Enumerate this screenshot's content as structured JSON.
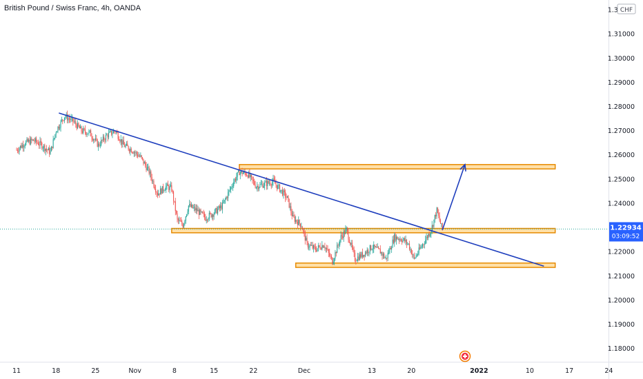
{
  "header": {
    "title": "British Pound / Swiss Franc, 4h, OANDA",
    "currency": "CHF"
  },
  "price_badge": {
    "price": "1.22934",
    "countdown": "03:09:52",
    "color": "#2962ff"
  },
  "colors": {
    "up": "#26a69a",
    "down": "#ef5350",
    "trendline": "#1e3ebd",
    "zone_fill": "#ffe0a8",
    "zone_border": "#e68a00"
  },
  "chart_data": {
    "type": "candlestick",
    "title": "British Pound / Swiss Franc, 4h, OANDA",
    "ylim": [
      1.1745,
      1.324
    ],
    "y_ticks": [
      "1.32000",
      "1.31000",
      "1.30000",
      "1.29000",
      "1.28000",
      "1.27000",
      "1.26000",
      "1.25000",
      "1.24000",
      "1.22000",
      "1.21000",
      "1.20000",
      "1.19000",
      "1.18000"
    ],
    "x_ticks": [
      {
        "label": "11",
        "day": 0
      },
      {
        "label": "18",
        "day": 7
      },
      {
        "label": "25",
        "day": 14
      },
      {
        "label": "Nov",
        "day": 21
      },
      {
        "label": "8",
        "day": 28
      },
      {
        "label": "15",
        "day": 35
      },
      {
        "label": "22",
        "day": 42
      },
      {
        "label": "Dec",
        "day": 51
      },
      {
        "label": "13",
        "day": 63
      },
      {
        "label": "20",
        "day": 70
      },
      {
        "label": "2022",
        "day": 82
      },
      {
        "label": "10",
        "day": 91
      },
      {
        "label": "17",
        "day": 98
      },
      {
        "label": "24",
        "day": 105
      }
    ],
    "last_price": 1.22934,
    "trendline": {
      "from": [
        7.5,
        1.2773
      ],
      "to": [
        93.5,
        1.214
      ]
    },
    "projection_arrow": {
      "from": [
        75.5,
        1.229
      ],
      "to": [
        79.5,
        1.256
      ]
    },
    "zones": [
      {
        "x": [
          39.5,
          95.5
        ],
        "y": [
          1.2542,
          1.256
        ]
      },
      {
        "x": [
          27.5,
          95.5
        ],
        "y": [
          1.2278,
          1.2296
        ]
      },
      {
        "x": [
          49.5,
          95.5
        ],
        "y": [
          1.2135,
          1.2153
        ]
      }
    ],
    "price_path": [
      [
        0,
        1.262
      ],
      [
        1.5,
        1.265
      ],
      [
        3,
        1.266
      ],
      [
        4.5,
        1.264
      ],
      [
        6,
        1.261
      ],
      [
        7,
        1.27
      ],
      [
        8.5,
        1.276
      ],
      [
        10,
        1.274
      ],
      [
        11.5,
        1.27
      ],
      [
        13,
        1.269
      ],
      [
        14.5,
        1.264
      ],
      [
        16,
        1.268
      ],
      [
        17.5,
        1.27
      ],
      [
        19,
        1.264
      ],
      [
        20.5,
        1.262
      ],
      [
        22,
        1.259
      ],
      [
        23.5,
        1.253
      ],
      [
        25,
        1.244
      ],
      [
        26.5,
        1.247
      ],
      [
        27.5,
        1.246
      ],
      [
        28.5,
        1.233
      ],
      [
        29.5,
        1.231
      ],
      [
        30.5,
        1.239
      ],
      [
        32,
        1.237
      ],
      [
        33.5,
        1.234
      ],
      [
        35,
        1.236
      ],
      [
        36.5,
        1.239
      ],
      [
        37.5,
        1.244
      ],
      [
        38.5,
        1.249
      ],
      [
        39.5,
        1.253
      ],
      [
        41,
        1.252
      ],
      [
        42.5,
        1.247
      ],
      [
        44,
        1.248
      ],
      [
        45.5,
        1.249
      ],
      [
        47,
        1.245
      ],
      [
        48,
        1.242
      ],
      [
        49,
        1.234
      ],
      [
        50.5,
        1.231
      ],
      [
        51.5,
        1.223
      ],
      [
        53,
        1.221
      ],
      [
        54.5,
        1.223
      ],
      [
        56,
        1.216
      ],
      [
        57.5,
        1.226
      ],
      [
        58.5,
        1.229
      ],
      [
        60,
        1.217
      ],
      [
        61.5,
        1.219
      ],
      [
        63,
        1.222
      ],
      [
        64.5,
        1.22
      ],
      [
        65.5,
        1.217
      ],
      [
        67,
        1.226
      ],
      [
        68.5,
        1.225
      ],
      [
        69.5,
        1.223
      ],
      [
        70.5,
        1.217
      ],
      [
        72,
        1.223
      ],
      [
        73.5,
        1.229
      ],
      [
        74.5,
        1.237
      ],
      [
        75.5,
        1.229
      ]
    ]
  }
}
